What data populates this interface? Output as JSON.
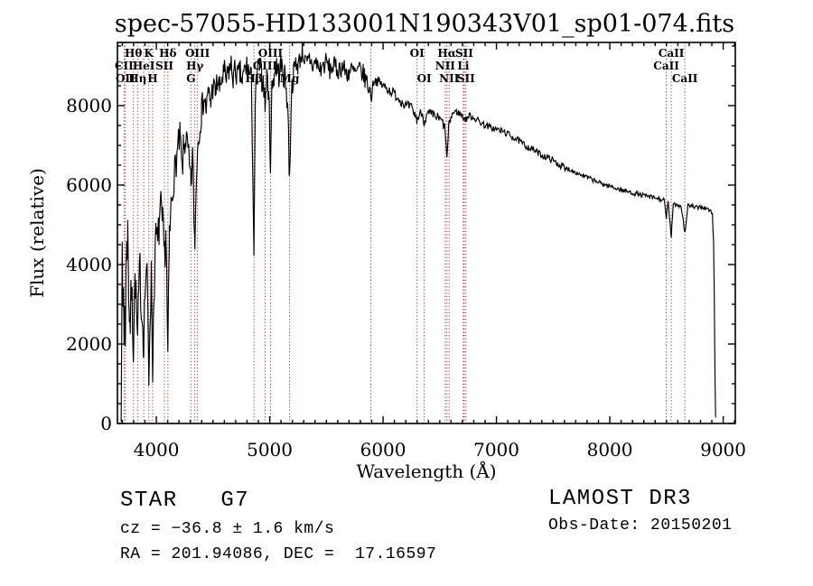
{
  "title": "spec-57055-HD133001N190343V01_sp01-074.fits",
  "annotations": {
    "class_line": "STAR   G7",
    "cz_line": "cz = −36.8 ± 1.6 km/s",
    "radec_line": "RA = 201.94086, DEC =  17.16597",
    "survey": "LAMOST DR3",
    "obs_date": "Obs-Date: 20150201"
  },
  "chart_data": {
    "type": "line",
    "title": "spec-57055-HD133001N190343V01_sp01-074.fits",
    "xlabel": "Wavelength (Å)",
    "ylabel": "Flux (relative)",
    "xlim": [
      3657,
      9107
    ],
    "ylim": [
      0,
      9590
    ],
    "grid": false,
    "xticks": {
      "major": [
        4000,
        5000,
        6000,
        7000,
        8000,
        9000
      ],
      "minor_step": 100
    },
    "yticks": {
      "major": [
        0,
        2000,
        4000,
        6000,
        8000
      ],
      "minor_step": 500
    },
    "spectrum": {
      "color": "#000000",
      "sample_step": 6,
      "noise_regions": [
        [
          3690,
          4150,
          600
        ],
        [
          4150,
          4400,
          430
        ],
        [
          4400,
          5200,
          360
        ],
        [
          5200,
          5900,
          270
        ],
        [
          5900,
          6550,
          130
        ],
        [
          6550,
          7600,
          85
        ],
        [
          7600,
          8940,
          60
        ]
      ],
      "anchors": [
        [
          3690,
          250
        ],
        [
          3694,
          2300
        ],
        [
          3699,
          4000
        ],
        [
          3704,
          2700
        ],
        [
          3710,
          3400
        ],
        [
          3716,
          2100
        ],
        [
          3721,
          3000
        ],
        [
          3727,
          2250
        ],
        [
          3733,
          3800
        ],
        [
          3740,
          4400
        ],
        [
          3748,
          4800
        ],
        [
          3755,
          3500
        ],
        [
          3762,
          2800
        ],
        [
          3770,
          2500
        ],
        [
          3780,
          3400
        ],
        [
          3790,
          2700
        ],
        [
          3798,
          1950
        ],
        [
          3806,
          3100
        ],
        [
          3815,
          3650
        ],
        [
          3825,
          2750
        ],
        [
          3835,
          2000
        ],
        [
          3845,
          3200
        ],
        [
          3856,
          3900
        ],
        [
          3868,
          3000
        ],
        [
          3880,
          2500
        ],
        [
          3889,
          2150
        ],
        [
          3900,
          3300
        ],
        [
          3912,
          3950
        ],
        [
          3922,
          3200
        ],
        [
          3934,
          1150
        ],
        [
          3945,
          2900
        ],
        [
          3956,
          3600
        ],
        [
          3968,
          1400
        ],
        [
          3978,
          3200
        ],
        [
          3990,
          4300
        ],
        [
          4000,
          4700
        ],
        [
          4012,
          4400
        ],
        [
          4025,
          5000
        ],
        [
          4040,
          5300
        ],
        [
          4055,
          4900
        ],
        [
          4072,
          4200
        ],
        [
          4085,
          4900
        ],
        [
          4102,
          1500
        ],
        [
          4115,
          4600
        ],
        [
          4130,
          5400
        ],
        [
          4150,
          6100
        ],
        [
          4170,
          6500
        ],
        [
          4190,
          6900
        ],
        [
          4210,
          7200
        ],
        [
          4227,
          6300
        ],
        [
          4240,
          6900
        ],
        [
          4260,
          7200
        ],
        [
          4280,
          6800
        ],
        [
          4305,
          6000
        ],
        [
          4320,
          6700
        ],
        [
          4340,
          4400
        ],
        [
          4352,
          6200
        ],
        [
          4363,
          6900
        ],
        [
          4380,
          7500
        ],
        [
          4400,
          7900
        ],
        [
          4420,
          8200
        ],
        [
          4440,
          7900
        ],
        [
          4460,
          8300
        ],
        [
          4480,
          8100
        ],
        [
          4500,
          8500
        ],
        [
          4520,
          8300
        ],
        [
          4540,
          8600
        ],
        [
          4560,
          8400
        ],
        [
          4580,
          8700
        ],
        [
          4600,
          8800
        ],
        [
          4620,
          8600
        ],
        [
          4640,
          8900
        ],
        [
          4660,
          9000
        ],
        [
          4680,
          8700
        ],
        [
          4700,
          8900
        ],
        [
          4720,
          8700
        ],
        [
          4740,
          8800
        ],
        [
          4760,
          8600
        ],
        [
          4780,
          8900
        ],
        [
          4800,
          9000
        ],
        [
          4820,
          8800
        ],
        [
          4840,
          8600
        ],
        [
          4861,
          4300
        ],
        [
          4875,
          8300
        ],
        [
          4890,
          8800
        ],
        [
          4910,
          9000
        ],
        [
          4930,
          8700
        ],
        [
          4950,
          8500
        ],
        [
          4959,
          8000
        ],
        [
          4975,
          8700
        ],
        [
          4990,
          8400
        ],
        [
          5007,
          6600
        ],
        [
          5020,
          8500
        ],
        [
          5040,
          8800
        ],
        [
          5060,
          9000
        ],
        [
          5080,
          8800
        ],
        [
          5100,
          9000
        ],
        [
          5120,
          8800
        ],
        [
          5140,
          8600
        ],
        [
          5160,
          8000
        ],
        [
          5175,
          6100
        ],
        [
          5190,
          8200
        ],
        [
          5210,
          8800
        ],
        [
          5230,
          9100
        ],
        [
          5250,
          9000
        ],
        [
          5270,
          9200
        ],
        [
          5290,
          9400
        ],
        [
          5310,
          9100
        ],
        [
          5330,
          9000
        ],
        [
          5350,
          9200
        ],
        [
          5380,
          9000
        ],
        [
          5410,
          9100
        ],
        [
          5440,
          8900
        ],
        [
          5470,
          9000
        ],
        [
          5500,
          9100
        ],
        [
          5530,
          8900
        ],
        [
          5560,
          9000
        ],
        [
          5600,
          8900
        ],
        [
          5640,
          9000
        ],
        [
          5680,
          8800
        ],
        [
          5720,
          8900
        ],
        [
          5760,
          8800
        ],
        [
          5800,
          8900
        ],
        [
          5840,
          8700
        ],
        [
          5870,
          8500
        ],
        [
          5893,
          8250
        ],
        [
          5920,
          8650
        ],
        [
          5960,
          8600
        ],
        [
          6000,
          8500
        ],
        [
          6050,
          8400
        ],
        [
          6100,
          8300
        ],
        [
          6150,
          8150
        ],
        [
          6200,
          8000
        ],
        [
          6250,
          7950
        ],
        [
          6300,
          7650
        ],
        [
          6340,
          7850
        ],
        [
          6363,
          7600
        ],
        [
          6400,
          7800
        ],
        [
          6440,
          7750
        ],
        [
          6480,
          7700
        ],
        [
          6520,
          7600
        ],
        [
          6548,
          7400
        ],
        [
          6563,
          6650
        ],
        [
          6580,
          7500
        ],
        [
          6610,
          7800
        ],
        [
          6640,
          7850
        ],
        [
          6680,
          7800
        ],
        [
          6708,
          7700
        ],
        [
          6731,
          7650
        ],
        [
          6760,
          7750
        ],
        [
          6800,
          7700
        ],
        [
          6850,
          7600
        ],
        [
          6900,
          7500
        ],
        [
          6950,
          7450
        ],
        [
          7000,
          7400
        ],
        [
          7060,
          7350
        ],
        [
          7120,
          7250
        ],
        [
          7180,
          7150
        ],
        [
          7250,
          7000
        ],
        [
          7320,
          6900
        ],
        [
          7400,
          6750
        ],
        [
          7480,
          6650
        ],
        [
          7560,
          6500
        ],
        [
          7590,
          6480
        ],
        [
          7605,
          6350
        ],
        [
          7620,
          6430
        ],
        [
          7700,
          6320
        ],
        [
          7780,
          6220
        ],
        [
          7860,
          6120
        ],
        [
          7940,
          6020
        ],
        [
          8020,
          5960
        ],
        [
          8100,
          5880
        ],
        [
          8180,
          5820
        ],
        [
          8260,
          5760
        ],
        [
          8340,
          5710
        ],
        [
          8420,
          5660
        ],
        [
          8480,
          5610
        ],
        [
          8498,
          5150
        ],
        [
          8515,
          5600
        ],
        [
          8542,
          4650
        ],
        [
          8560,
          5550
        ],
        [
          8600,
          5500
        ],
        [
          8630,
          5470
        ],
        [
          8662,
          4800
        ],
        [
          8690,
          5500
        ],
        [
          8720,
          5470
        ],
        [
          8760,
          5420
        ],
        [
          8800,
          5460
        ],
        [
          8840,
          5420
        ],
        [
          8880,
          5360
        ],
        [
          8905,
          5280
        ],
        [
          8915,
          4600
        ],
        [
          8922,
          3000
        ],
        [
          8928,
          1200
        ],
        [
          8933,
          150
        ]
      ]
    },
    "line_markers": {
      "color": "#a23333",
      "rows_y": [
        63,
        77,
        91
      ],
      "items": [
        {
          "label": "CII",
          "row": 2,
          "wl": 3716
        },
        {
          "label": "OII",
          "row": 3,
          "wl": 3727
        },
        {
          "label": "Hθ",
          "row": 1,
          "wl": 3798
        },
        {
          "label": "Hη",
          "row": 3,
          "wl": 3835
        },
        {
          "label": "HeI",
          "row": 2,
          "wl": 3889
        },
        {
          "label": "K",
          "row": 1,
          "wl": 3934
        },
        {
          "label": "H",
          "row": 3,
          "wl": 3968
        },
        {
          "label": "SII",
          "row": 2,
          "wl": 4072
        },
        {
          "label": "Hδ",
          "row": 1,
          "wl": 4102
        },
        {
          "label": "G",
          "row": 3,
          "wl": 4305
        },
        {
          "label": "Hγ",
          "row": 2,
          "wl": 4340
        },
        {
          "label": "OIII",
          "row": 1,
          "wl": 4363
        },
        {
          "label": "Hβ",
          "row": 3,
          "wl": 4861
        },
        {
          "label": "OIII",
          "row": 2,
          "wl": 4959
        },
        {
          "label": "OIII",
          "row": 1,
          "wl": 5007
        },
        {
          "label": "Mg",
          "row": 3,
          "wl": 5175
        },
        {
          "label": "",
          "row": 2,
          "wl": 5893
        },
        {
          "label": "OI",
          "row": 1,
          "wl": 6300
        },
        {
          "label": "OI",
          "row": 3,
          "wl": 6363
        },
        {
          "label": "NII",
          "row": 2,
          "wl": 6548
        },
        {
          "label": "Hα",
          "row": 1,
          "wl": 6563
        },
        {
          "label": "NII",
          "row": 3,
          "wl": 6583
        },
        {
          "label": "Li",
          "row": 2,
          "wl": 6708
        },
        {
          "label": "SII",
          "row": 1,
          "wl": 6716
        },
        {
          "label": "SII",
          "row": 3,
          "wl": 6731
        },
        {
          "label": "CaII",
          "row": 2,
          "wl": 8498
        },
        {
          "label": "CaII",
          "row": 1,
          "wl": 8542
        },
        {
          "label": "CaII",
          "row": 3,
          "wl": 8662
        }
      ]
    }
  }
}
